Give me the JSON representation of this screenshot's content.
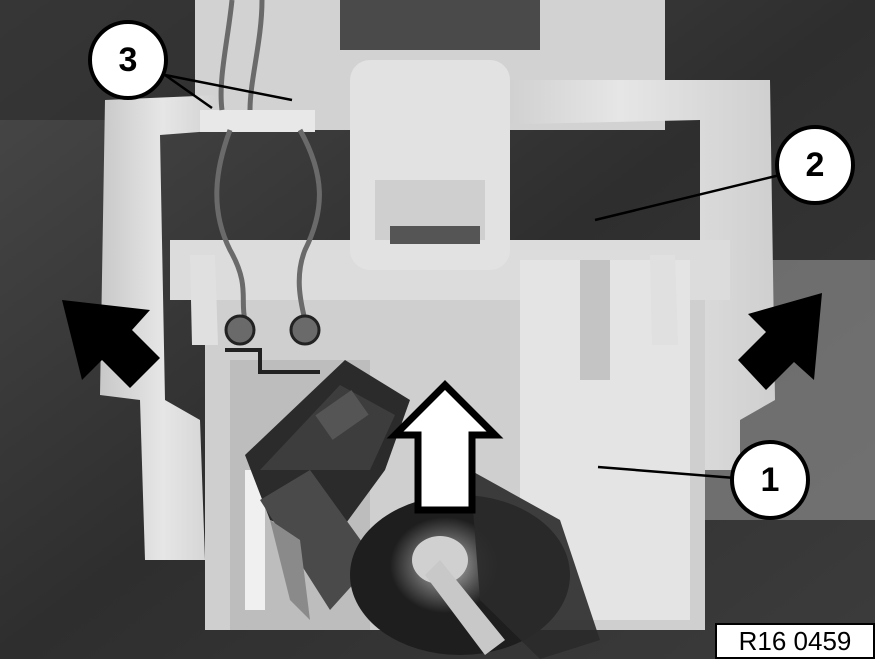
{
  "figure": {
    "callouts": [
      {
        "number": "1"
      },
      {
        "number": "2"
      },
      {
        "number": "3"
      }
    ],
    "reference_code": "R16 0459",
    "arrows": [
      {
        "name": "left-pointer-arrow",
        "direction": "down-right"
      },
      {
        "name": "right-pointer-arrow",
        "direction": "down-left"
      },
      {
        "name": "pull-up-arrow",
        "direction": "up"
      }
    ],
    "colors": {
      "background": "#3a3a3a",
      "plastic_housing": "#d6d6d6",
      "arrow_fill": "#000000",
      "callout_fill": "#ffffff"
    }
  }
}
